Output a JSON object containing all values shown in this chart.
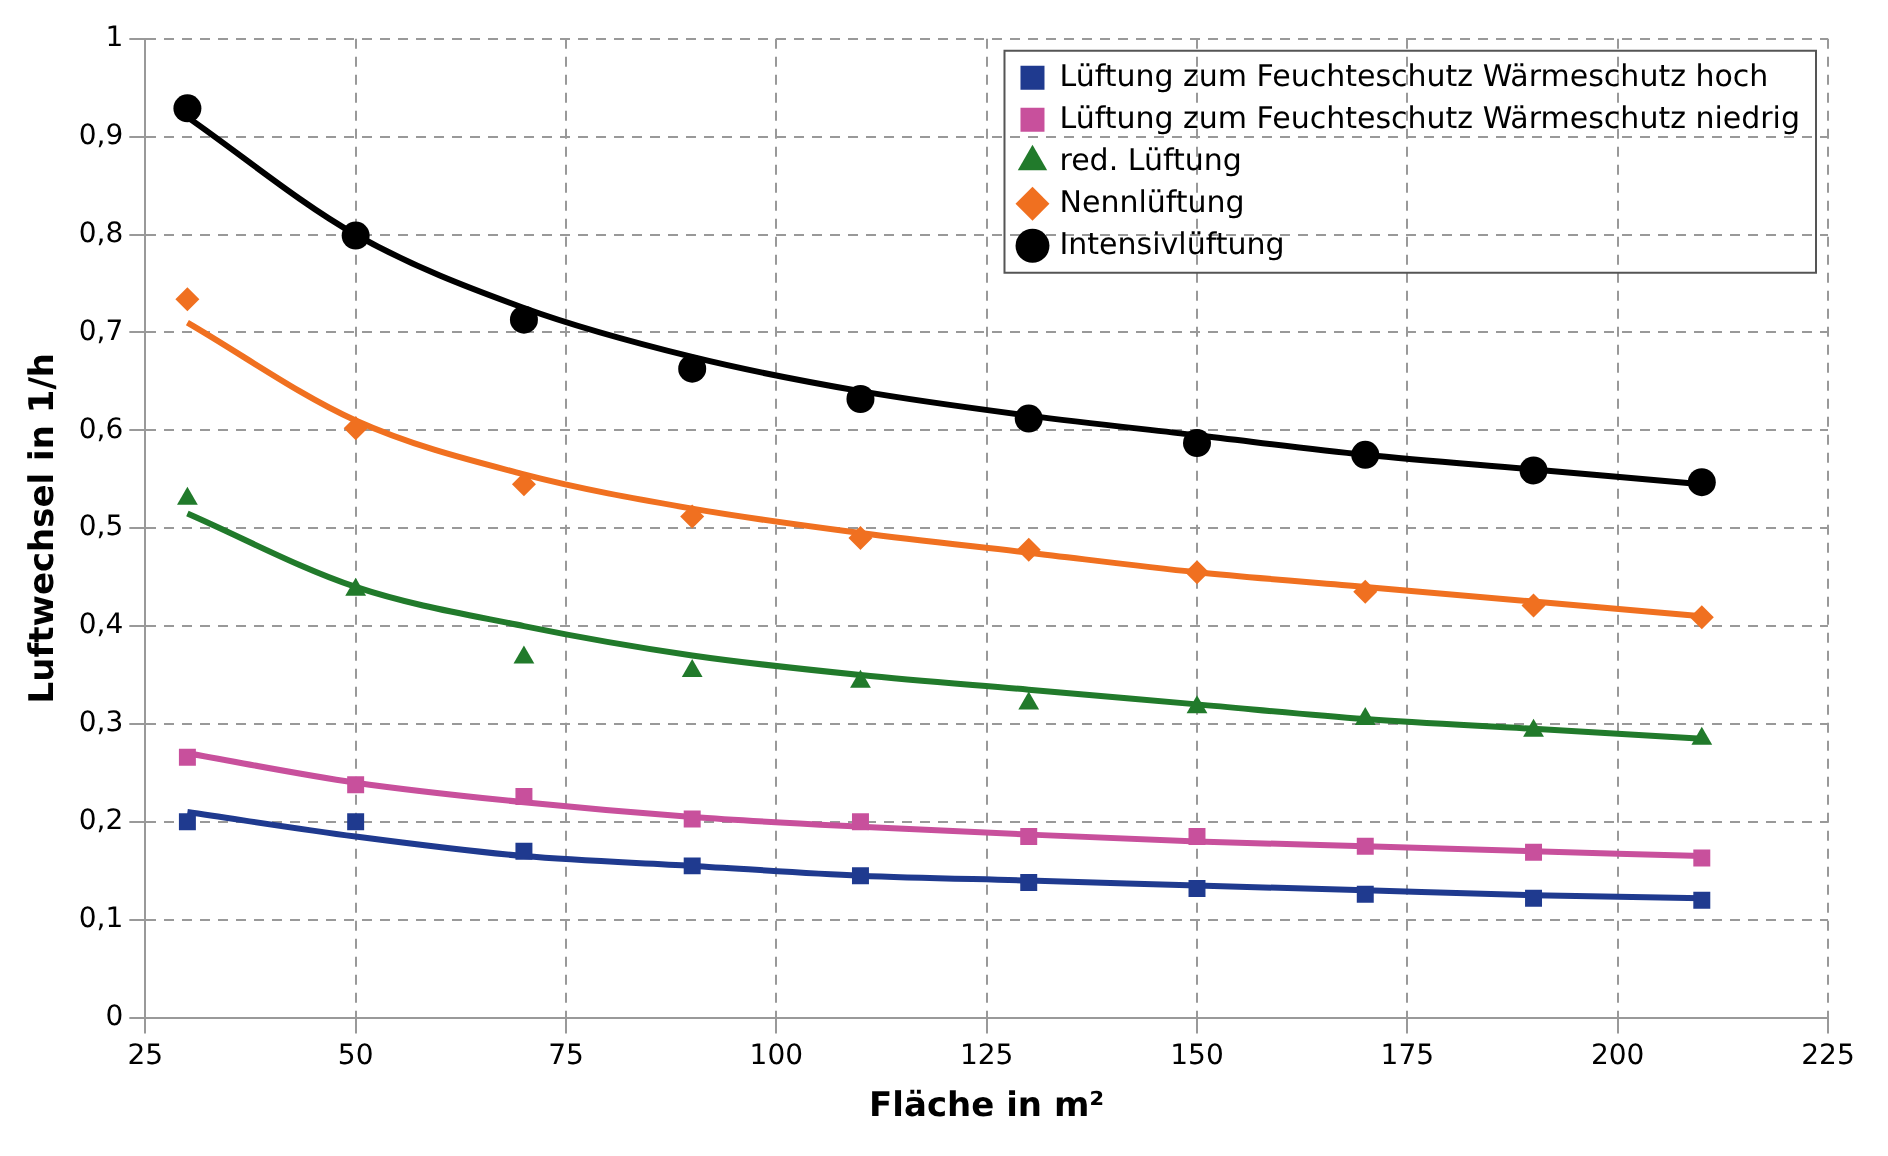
{
  "chart_data": {
    "type": "scatter",
    "xlabel": "Fläche in m²",
    "ylabel": "Luftwechsel in 1/h",
    "xlim": [
      25,
      225
    ],
    "xticks": [
      25,
      50,
      75,
      100,
      125,
      150,
      175,
      200,
      225
    ],
    "ylim": [
      0,
      1
    ],
    "yticks": [
      {
        "value": 0,
        "label": "0"
      },
      {
        "value": 0.1,
        "label": "0,1"
      },
      {
        "value": 0.2,
        "label": "0,2"
      },
      {
        "value": 0.3,
        "label": "0,3"
      },
      {
        "value": 0.4,
        "label": "0,4"
      },
      {
        "value": 0.5,
        "label": "0,5"
      },
      {
        "value": 0.6,
        "label": "0,6"
      },
      {
        "value": 0.7,
        "label": "0,7"
      },
      {
        "value": 0.8,
        "label": "0,8"
      },
      {
        "value": 0.9,
        "label": "0,9"
      },
      {
        "value": 1,
        "label": "1"
      }
    ],
    "grid": true,
    "legend": "top right",
    "x": [
      30,
      50,
      70,
      90,
      110,
      130,
      150,
      170,
      190,
      210
    ],
    "series": [
      {
        "name": "Lüftung zum Feuchteschutz Wärmeschutz hoch",
        "color": "#1f3a8f",
        "marker": "square",
        "values": [
          0.2,
          0.2,
          0.17,
          0.155,
          0.145,
          0.138,
          0.132,
          0.126,
          0.122,
          0.12
        ]
      },
      {
        "name": "Lüftung zum Feuchteschutz Wärmeschutz niedrig",
        "color": "#c8509c",
        "marker": "square",
        "values": [
          0.266,
          0.238,
          0.226,
          0.203,
          0.2,
          0.185,
          0.185,
          0.175,
          0.169,
          0.163
        ]
      },
      {
        "name": "red. Lüftung",
        "color": "#217a2b",
        "marker": "triangle",
        "values": [
          0.53,
          0.437,
          0.368,
          0.354,
          0.343,
          0.321,
          0.317,
          0.305,
          0.293,
          0.285
        ]
      },
      {
        "name": "Nennlüftung",
        "color": "#f07020",
        "marker": "diamond",
        "values": [
          0.734,
          0.602,
          0.545,
          0.512,
          0.49,
          0.478,
          0.455,
          0.435,
          0.421,
          0.409
        ]
      },
      {
        "name": "Intensivlüftung",
        "color": "#000000",
        "marker": "circle",
        "values": [
          0.929,
          0.799,
          0.713,
          0.663,
          0.632,
          0.612,
          0.587,
          0.575,
          0.559,
          0.547
        ]
      },
      {
        "type": "line",
        "color": "#1f3a8f",
        "marker": "none",
        "values": [
          0.21,
          0.185,
          0.165,
          0.155,
          0.145,
          0.14,
          0.135,
          0.13,
          0.125,
          0.122
        ]
      },
      {
        "type": "line",
        "color": "#c8509c",
        "marker": "none",
        "values": [
          0.27,
          0.24,
          0.22,
          0.205,
          0.195,
          0.187,
          0.18,
          0.175,
          0.17,
          0.165
        ]
      },
      {
        "type": "line",
        "color": "#217a2b",
        "marker": "none",
        "values": [
          0.515,
          0.44,
          0.4,
          0.37,
          0.35,
          0.335,
          0.32,
          0.305,
          0.295,
          0.285
        ]
      },
      {
        "type": "line",
        "color": "#f07020",
        "marker": "none",
        "values": [
          0.71,
          0.61,
          0.555,
          0.52,
          0.495,
          0.475,
          0.455,
          0.44,
          0.425,
          0.41
        ]
      },
      {
        "type": "line",
        "color": "#000000",
        "marker": "none",
        "values": [
          0.92,
          0.8,
          0.725,
          0.675,
          0.64,
          0.615,
          0.595,
          0.575,
          0.56,
          0.545
        ]
      }
    ]
  }
}
